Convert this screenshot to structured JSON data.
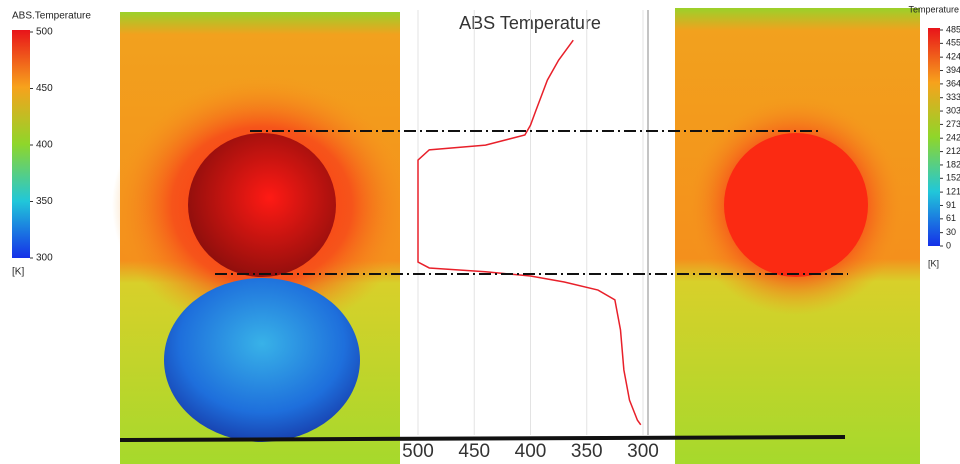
{
  "figure": {
    "left_colorbar": {
      "title": "ABS.Temperature",
      "lim": [
        300,
        500
      ],
      "ticks": [
        500,
        450,
        400,
        350,
        300
      ],
      "unit": "[K]"
    },
    "right_colorbar": {
      "title": "Temperature",
      "lim": [
        0,
        485
      ],
      "ticks": [
        485,
        455,
        424,
        394,
        364,
        333,
        303,
        273,
        242,
        212,
        182,
        152,
        121,
        91,
        61,
        30,
        0
      ],
      "unit": "[K]"
    }
  },
  "chart_data": {
    "type": "line",
    "title": "ABS Temperature",
    "y": [
      0.929,
      0.882,
      0.835,
      0.8,
      0.765,
      0.729,
      0.706,
      0.682,
      0.671,
      0.647,
      0.407,
      0.393,
      0.384,
      0.374,
      0.36,
      0.341,
      0.318,
      0.247,
      0.153,
      0.082,
      0.035,
      0.024
    ],
    "series": [
      {
        "color": "#e8202a",
        "values": [
          362,
          375,
          385,
          390,
          395,
          400,
          405,
          440,
          490,
          500,
          500,
          490,
          440,
          400,
          370,
          340,
          325,
          320,
          317,
          312,
          305,
          302
        ]
      }
    ],
    "xlim": [
      500,
      300
    ],
    "xticks": [
      500,
      450,
      400,
      350,
      300
    ],
    "ylim": [
      0,
      1
    ],
    "grid": true
  }
}
